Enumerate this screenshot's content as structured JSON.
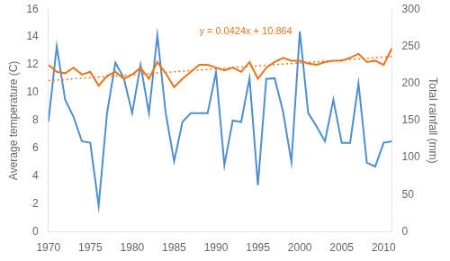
{
  "chart_data": {
    "type": "line",
    "x": [
      1970,
      1971,
      1972,
      1973,
      1974,
      1975,
      1976,
      1977,
      1978,
      1979,
      1980,
      1981,
      1982,
      1983,
      1984,
      1985,
      1986,
      1987,
      1988,
      1989,
      1990,
      1991,
      1992,
      1993,
      1994,
      1995,
      1996,
      1997,
      1998,
      1999,
      2000,
      2001,
      2002,
      2003,
      2004,
      2005,
      2006,
      2007,
      2008,
      2009,
      2010,
      2011
    ],
    "xlim": [
      1970,
      2011
    ],
    "xticks": [
      1970,
      1975,
      1980,
      1985,
      1990,
      1995,
      2000,
      2005,
      2010
    ],
    "ylim": [
      0,
      16
    ],
    "yticks": [
      0,
      2,
      4,
      6,
      8,
      10,
      12,
      14,
      16
    ],
    "y2lim": [
      0,
      300
    ],
    "y2ticks": [
      0,
      50,
      100,
      150,
      200,
      250,
      300
    ],
    "ylabel": "Average temperature (C)",
    "y2label": "Total rainfall (mm)",
    "grid": false,
    "series": [
      {
        "color": "#4F8FCC",
        "axis": "y2",
        "values": [
          148,
          250,
          178,
          155,
          122,
          120,
          35,
          160,
          228,
          207,
          160,
          225,
          160,
          265,
          160,
          95,
          148,
          160,
          160,
          160,
          215,
          90,
          150,
          148,
          207,
          63,
          206,
          207,
          162,
          94,
          270,
          160,
          142,
          122,
          178,
          120,
          120,
          200,
          93,
          88,
          120,
          122
        ]
      },
      {
        "color": "#E8761E",
        "values": [
          12.0,
          11.5,
          11.4,
          11.8,
          11.3,
          11.5,
          10.5,
          11.2,
          11.5,
          11.0,
          11.3,
          11.8,
          11.0,
          12.2,
          11.4,
          10.4,
          11.0,
          11.5,
          12.0,
          12.0,
          11.8,
          11.6,
          11.8,
          11.5,
          12.2,
          11.0,
          11.8,
          12.2,
          12.5,
          12.3,
          12.3,
          12.1,
          12.0,
          12.2,
          12.3,
          12.3,
          12.5,
          12.8,
          12.2,
          12.3,
          12.0,
          13.2
        ]
      },
      {
        "color": "#E8761E",
        "x": [
          1970,
          2011
        ],
        "values": [
          10.864,
          12.6024
        ],
        "line_style": "dotted"
      }
    ],
    "annotations": [
      {
        "text": "y = 0.0424x + 10.864",
        "x": 1988,
        "y": 14.2,
        "color": "#E8761E"
      }
    ]
  }
}
